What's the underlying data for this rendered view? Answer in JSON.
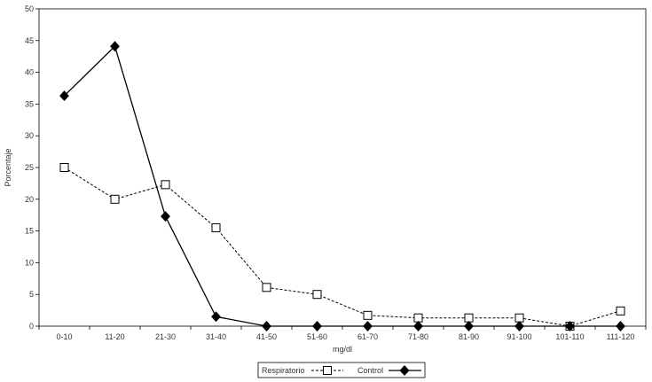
{
  "chart_data": {
    "type": "line",
    "title": "",
    "xlabel": "mg/dl",
    "ylabel": "Porcentaje",
    "categories": [
      "0-10",
      "11-20",
      "21-30",
      "31-40",
      "41-50",
      "51-60",
      "61-70",
      "71-80",
      "81-90",
      "91-100",
      "101-110",
      "111-120"
    ],
    "yticks": [
      "0",
      "5",
      "10",
      "15",
      "20",
      "25",
      "30",
      "35",
      "40",
      "45",
      "50"
    ],
    "ylim": [
      0,
      50
    ],
    "grid": false,
    "legend_position": "bottom-center",
    "series": [
      {
        "name": "Respiratorio",
        "marker": "open-square",
        "line_style": "dashed",
        "color": "#000000",
        "values": [
          25,
          20,
          22.3,
          15.5,
          6.1,
          5,
          1.7,
          1.3,
          1.3,
          1.3,
          0,
          2.4
        ]
      },
      {
        "name": "Control",
        "marker": "filled-diamond",
        "line_style": "solid",
        "color": "#000000",
        "values": [
          36.3,
          44.1,
          17.3,
          1.5,
          0,
          0,
          0,
          0,
          0,
          0,
          0,
          0
        ]
      }
    ]
  }
}
